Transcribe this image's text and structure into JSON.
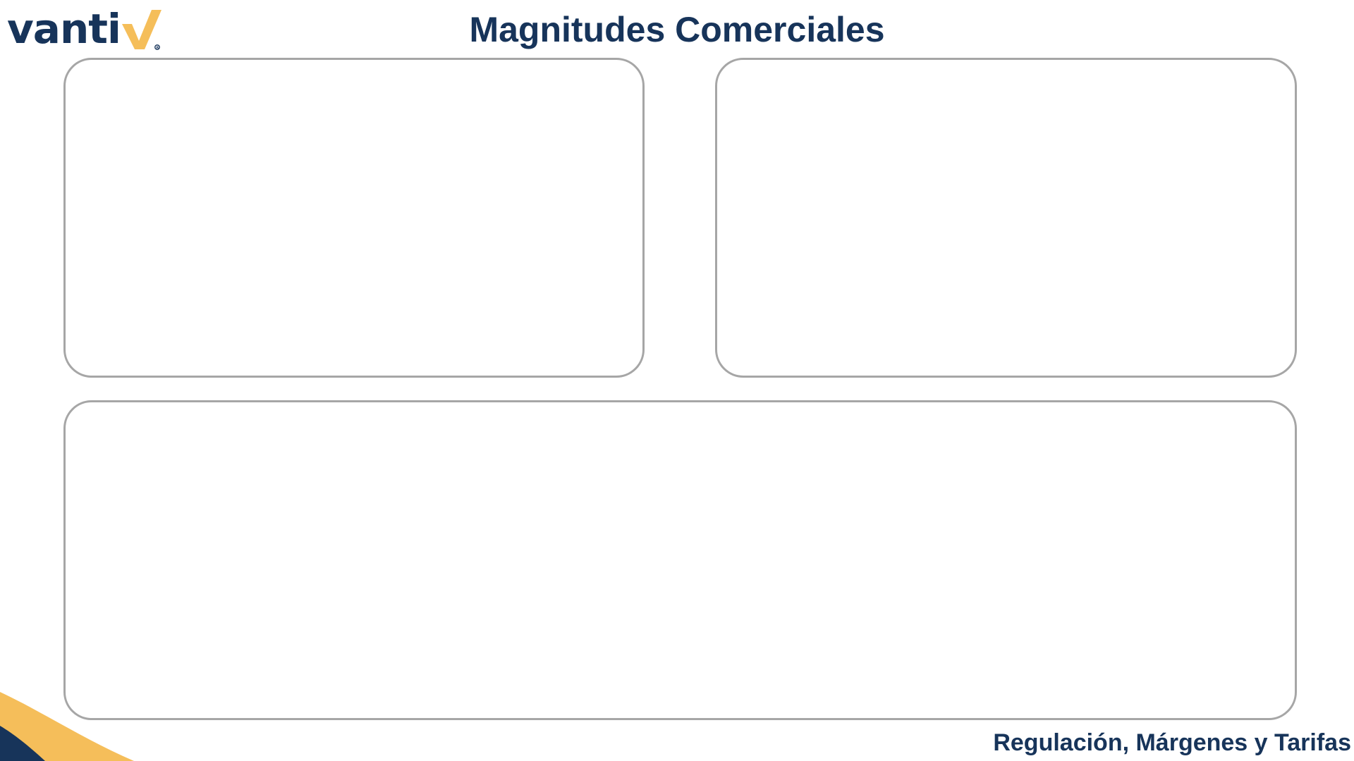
{
  "logo": {
    "text": "vanti",
    "icon": "checkmark-icon",
    "check_color": "#f5be5a"
  },
  "slide": {
    "title": "Magnitudes Comerciales",
    "footer": "Regulación, Márgenes y Tarifas"
  },
  "colors": {
    "primary": "#17345a",
    "accent": "#f5be5a",
    "panel_border": "#a6a6a6"
  }
}
